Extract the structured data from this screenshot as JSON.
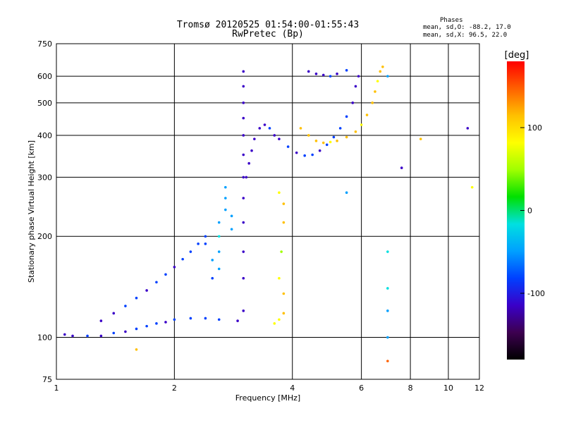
{
  "title_line1": "Tromsø 20120525 01:54:00-01:55:43",
  "title_line2": "RwPretec (Bp)",
  "phases": {
    "heading": "Phases",
    "line1": "mean, sd,O: -88.2, 17.0",
    "line2": "mean, sd,X:  96.5, 22.0"
  },
  "chart_data": {
    "type": "scatter",
    "xlabel": "Frequency [MHz]",
    "ylabel": "Stationary phase Virtual Height [km]",
    "x_scale": "log",
    "y_scale": "log",
    "xlim": [
      1,
      12
    ],
    "ylim": [
      75,
      750
    ],
    "x_ticks": [
      1,
      2,
      4,
      6,
      8,
      10,
      12
    ],
    "y_ticks": [
      75,
      100,
      200,
      300,
      400,
      500,
      600,
      750
    ],
    "grid": true,
    "colorbar": {
      "label": "[deg]",
      "range": [
        -180,
        180
      ],
      "ticks": [
        100,
        0,
        -100
      ],
      "colors": [
        "#000000",
        "#3d0050",
        "#3a00c8",
        "#0040ff",
        "#00a0ff",
        "#00e0e0",
        "#00e000",
        "#a0ff00",
        "#ffff00",
        "#ffc000",
        "#ff6000",
        "#ff0000"
      ]
    },
    "series": [
      {
        "points": [
          [
            1.05,
            102,
            -100
          ],
          [
            1.1,
            101,
            -105
          ],
          [
            1.2,
            101,
            -98
          ],
          [
            1.3,
            101,
            -102
          ],
          [
            1.4,
            103,
            -95
          ],
          [
            1.5,
            104,
            -100
          ],
          [
            1.6,
            106,
            -90
          ],
          [
            1.7,
            108,
            -95
          ],
          [
            1.8,
            110,
            -92
          ],
          [
            1.9,
            111,
            -100
          ],
          [
            2.0,
            113,
            -98
          ],
          [
            2.2,
            114,
            -95
          ],
          [
            2.4,
            114,
            -92
          ],
          [
            2.6,
            113,
            -95
          ],
          [
            2.9,
            112,
            -100
          ]
        ]
      },
      {
        "points": [
          [
            1.3,
            112,
            -105
          ],
          [
            1.4,
            118,
            -102
          ],
          [
            1.5,
            124,
            -98
          ],
          [
            1.6,
            131,
            -95
          ],
          [
            1.7,
            138,
            -100
          ],
          [
            1.8,
            146,
            -92
          ],
          [
            1.9,
            154,
            -96
          ],
          [
            2.0,
            162,
            -100
          ],
          [
            2.1,
            171,
            -95
          ],
          [
            2.2,
            180,
            -90
          ],
          [
            2.3,
            190,
            -85
          ],
          [
            2.4,
            200,
            -80
          ]
        ]
      },
      {
        "points": [
          [
            2.6,
            160,
            -50
          ],
          [
            2.6,
            180,
            -40
          ],
          [
            2.6,
            200,
            -30
          ],
          [
            2.6,
            220,
            -45
          ],
          [
            2.7,
            240,
            -55
          ],
          [
            2.7,
            260,
            -60
          ],
          [
            2.5,
            150,
            -70
          ],
          [
            2.5,
            170,
            -65
          ],
          [
            2.4,
            190,
            -75
          ],
          [
            2.8,
            210,
            -60
          ],
          [
            2.8,
            230,
            -50
          ],
          [
            2.7,
            280,
            -40
          ]
        ]
      },
      {
        "points": [
          [
            3.0,
            120,
            -110
          ],
          [
            3.0,
            150,
            -120
          ],
          [
            3.0,
            180,
            -115
          ],
          [
            3.0,
            220,
            -110
          ],
          [
            3.0,
            260,
            -108
          ],
          [
            3.0,
            300,
            -112
          ],
          [
            3.0,
            350,
            -115
          ],
          [
            3.0,
            400,
            -110
          ],
          [
            3.0,
            450,
            -108
          ],
          [
            3.0,
            500,
            -112
          ],
          [
            3.0,
            560,
            -115
          ],
          [
            3.0,
            620,
            -110
          ],
          [
            3.05,
            300,
            -118
          ],
          [
            3.1,
            330,
            -120
          ],
          [
            3.15,
            360,
            -115
          ],
          [
            3.2,
            390,
            -110
          ],
          [
            3.3,
            420,
            -105
          ],
          [
            3.4,
            430,
            -100
          ],
          [
            3.5,
            420,
            -95
          ],
          [
            3.6,
            400,
            -100
          ]
        ]
      },
      {
        "points": [
          [
            3.7,
            390,
            -100
          ],
          [
            3.9,
            370,
            -98
          ],
          [
            4.1,
            355,
            -100
          ],
          [
            4.3,
            348,
            -95
          ],
          [
            4.5,
            350,
            -98
          ],
          [
            4.7,
            360,
            -100
          ],
          [
            4.9,
            375,
            -95
          ],
          [
            5.1,
            395,
            -92
          ],
          [
            5.3,
            420,
            -95
          ],
          [
            5.5,
            455,
            -98
          ],
          [
            5.7,
            500,
            -100
          ],
          [
            5.8,
            560,
            -102
          ],
          [
            5.9,
            600,
            -100
          ]
        ]
      },
      {
        "points": [
          [
            3.6,
            110,
            90
          ],
          [
            3.7,
            113,
            95
          ],
          [
            3.8,
            118,
            100
          ],
          [
            3.8,
            135,
            110
          ],
          [
            3.7,
            150,
            80
          ],
          [
            3.75,
            180,
            60
          ],
          [
            3.8,
            220,
            100
          ],
          [
            3.8,
            250,
            120
          ],
          [
            3.7,
            270,
            90
          ]
        ]
      },
      {
        "points": [
          [
            4.2,
            420,
            100
          ],
          [
            4.4,
            400,
            110
          ],
          [
            4.6,
            385,
            105
          ],
          [
            4.8,
            380,
            100
          ],
          [
            5.0,
            382,
            95
          ],
          [
            5.2,
            385,
            100
          ],
          [
            5.5,
            395,
            102
          ],
          [
            5.8,
            410,
            100
          ],
          [
            6.0,
            430,
            98
          ],
          [
            6.2,
            460,
            100
          ],
          [
            6.4,
            500,
            105
          ],
          [
            6.5,
            540,
            100
          ],
          [
            6.6,
            580,
            95
          ],
          [
            6.7,
            620,
            100
          ],
          [
            6.8,
            640,
            110
          ]
        ]
      },
      {
        "points": [
          [
            4.4,
            620,
            -100
          ],
          [
            4.6,
            610,
            -105
          ],
          [
            4.8,
            605,
            -100
          ],
          [
            5.0,
            600,
            -95
          ],
          [
            5.2,
            610,
            -100
          ],
          [
            5.5,
            625,
            -98
          ]
        ]
      },
      {
        "points": [
          [
            7.0,
            600,
            -40
          ],
          [
            7.0,
            180,
            -30
          ],
          [
            7.0,
            140,
            -20
          ],
          [
            7.0,
            120,
            -40
          ],
          [
            7.0,
            100,
            -50
          ],
          [
            7.0,
            85,
            150
          ],
          [
            5.5,
            270,
            -60
          ],
          [
            7.6,
            320,
            -110
          ],
          [
            8.5,
            390,
            120
          ],
          [
            11.2,
            420,
            -110
          ],
          [
            11.5,
            280,
            90
          ],
          [
            1.6,
            92,
            100
          ]
        ]
      }
    ]
  }
}
